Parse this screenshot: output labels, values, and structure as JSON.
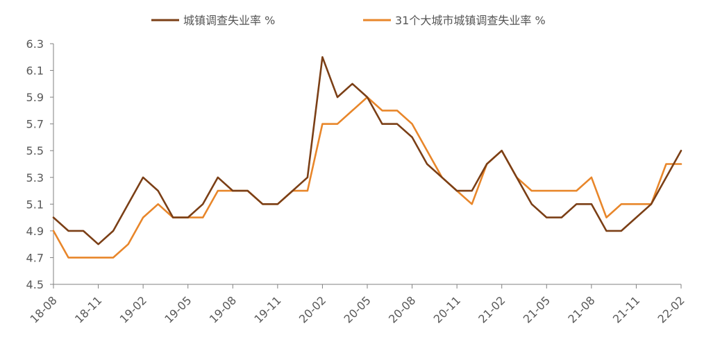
{
  "chart_data": {
    "type": "line",
    "title": "",
    "xlabel": "",
    "ylabel": "",
    "ylim": [
      4.5,
      6.3
    ],
    "yticks": [
      "4.5",
      "4.7",
      "4.9",
      "5.1",
      "5.3",
      "5.5",
      "5.7",
      "5.9",
      "6.1",
      "6.3"
    ],
    "x": [
      "18-08",
      "18-09",
      "18-10",
      "18-11",
      "18-12",
      "19-01",
      "19-02",
      "19-03",
      "19-04",
      "19-05",
      "19-06",
      "19-07",
      "19-08",
      "19-09",
      "19-10",
      "19-11",
      "19-12",
      "20-01",
      "20-02",
      "20-03",
      "20-04",
      "20-05",
      "20-06",
      "20-07",
      "20-08",
      "20-09",
      "20-10",
      "20-11",
      "20-12",
      "21-01",
      "21-02",
      "21-03",
      "21-04",
      "21-05",
      "21-06",
      "21-07",
      "21-08",
      "21-09",
      "21-10",
      "21-11",
      "21-12",
      "22-01",
      "22-02"
    ],
    "xticks": [
      "18-08",
      "18-11",
      "19-02",
      "19-05",
      "19-08",
      "19-11",
      "20-02",
      "20-05",
      "20-08",
      "20-11",
      "21-02",
      "21-05",
      "21-08",
      "21-11",
      "22-02"
    ],
    "grid": false,
    "legend_position": "top",
    "series": [
      {
        "name": "城镇调查失业率 %",
        "color": "#7B3F16",
        "values": [
          5.0,
          4.9,
          4.9,
          4.8,
          4.9,
          5.1,
          5.3,
          5.2,
          5.0,
          5.0,
          5.1,
          5.3,
          5.2,
          5.2,
          5.1,
          5.1,
          5.2,
          5.3,
          6.2,
          5.9,
          6.0,
          5.9,
          5.7,
          5.7,
          5.6,
          5.4,
          5.3,
          5.2,
          5.2,
          5.4,
          5.5,
          5.3,
          5.1,
          5.0,
          5.0,
          5.1,
          5.1,
          4.9,
          4.9,
          5.0,
          5.1,
          5.3,
          5.5
        ]
      },
      {
        "name": "31个大城市城镇调查失业率 %",
        "color": "#E8862A",
        "values": [
          4.9,
          4.7,
          4.7,
          4.7,
          4.7,
          4.8,
          5.0,
          5.1,
          5.0,
          5.0,
          5.0,
          5.2,
          5.2,
          5.2,
          5.1,
          5.1,
          5.2,
          5.2,
          5.7,
          5.7,
          5.8,
          5.9,
          5.8,
          5.8,
          5.7,
          5.5,
          5.3,
          5.2,
          5.1,
          5.4,
          5.5,
          5.3,
          5.2,
          5.2,
          5.2,
          5.2,
          5.3,
          5.0,
          5.1,
          5.1,
          5.1,
          5.4,
          5.4
        ]
      }
    ]
  }
}
